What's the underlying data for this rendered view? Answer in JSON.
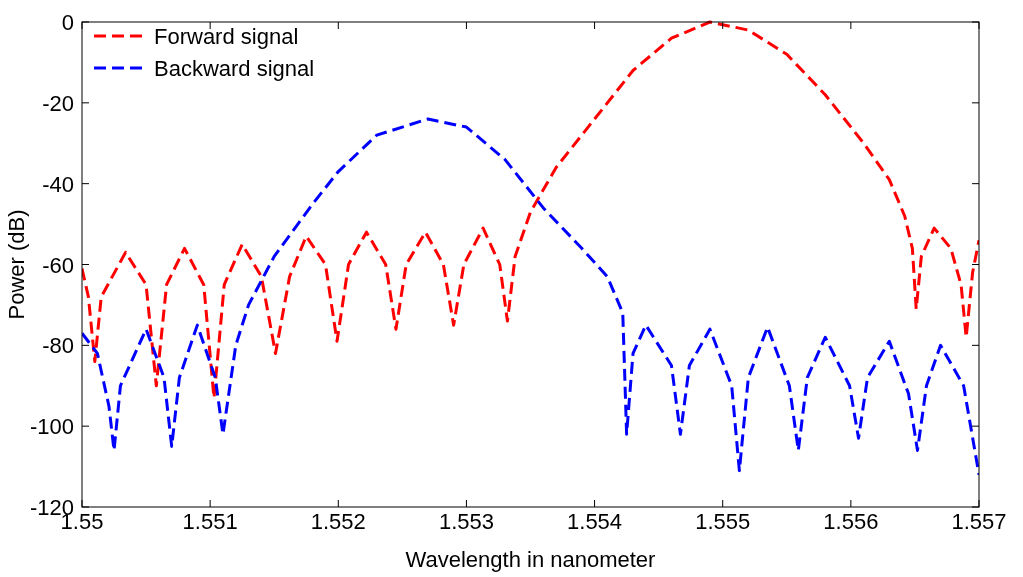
{
  "chart_data": {
    "type": "line",
    "xlabel": "Wavelength in nanometer",
    "ylabel": "Power (dB)",
    "xlim": [
      1.55,
      1.557
    ],
    "xticks": [
      1.55,
      1.551,
      1.552,
      1.553,
      1.554,
      1.555,
      1.556,
      1.557
    ],
    "ylim": [
      -120,
      0
    ],
    "yticks": [
      -120,
      -100,
      -80,
      -60,
      -40,
      -20,
      0
    ],
    "grid": false,
    "legend": "top left",
    "line_style": "dashed",
    "marker": "none",
    "series": [
      {
        "name": "Forward signal",
        "color": "#ff0000",
        "x": [
          1.55,
          1.55005,
          1.5501,
          1.55015,
          1.55034,
          1.5505,
          1.55058,
          1.55066,
          1.5508,
          1.55095,
          1.55103,
          1.55111,
          1.55125,
          1.5514,
          1.55151,
          1.55162,
          1.55175,
          1.5519,
          1.55199,
          1.55208,
          1.55222,
          1.55237,
          1.55245,
          1.55253,
          1.55268,
          1.55282,
          1.5529,
          1.55298,
          1.55313,
          1.55326,
          1.55332,
          1.55338,
          1.5535,
          1.5537,
          1.554,
          1.5543,
          1.5546,
          1.5549,
          1.5552,
          1.5555,
          1.5558,
          1.5561,
          1.5563,
          1.55642,
          1.55648,
          1.55651,
          1.55655,
          1.55665,
          1.55678,
          1.55686,
          1.5569,
          1.55695,
          1.557
        ],
        "values": [
          -61,
          -68,
          -84,
          -68,
          -57,
          -65,
          -90,
          -65,
          -56,
          -65,
          -93,
          -65,
          -55,
          -63,
          -82,
          -63,
          -53,
          -60,
          -79,
          -60,
          -52,
          -60,
          -76,
          -60,
          -52,
          -60,
          -75,
          -60,
          -51,
          -60,
          -74,
          -58,
          -47,
          -36,
          -24,
          -12,
          -4,
          0,
          -2,
          -8,
          -18,
          -30,
          -39,
          -48,
          -56,
          -71,
          -58,
          -51,
          -56,
          -65,
          -78,
          -62,
          -54
        ]
      },
      {
        "name": "Backward signal",
        "color": "#0000ff",
        "x": [
          1.55,
          1.55012,
          1.55021,
          1.55025,
          1.5503,
          1.5505,
          1.55064,
          1.5507,
          1.55076,
          1.5509,
          1.55104,
          1.5511,
          1.5512,
          1.5513,
          1.5515,
          1.5518,
          1.552,
          1.5523,
          1.5527,
          1.553,
          1.5533,
          1.5536,
          1.5539,
          1.5541,
          1.55422,
          1.55425,
          1.5543,
          1.5544,
          1.5546,
          1.55467,
          1.55474,
          1.5549,
          1.55507,
          1.55513,
          1.5552,
          1.55535,
          1.55552,
          1.55559,
          1.55566,
          1.5558,
          1.55599,
          1.55606,
          1.55613,
          1.5563,
          1.55645,
          1.55652,
          1.55659,
          1.5567,
          1.55688,
          1.557
        ],
        "values": [
          -77,
          -82,
          -95,
          -106,
          -90,
          -76,
          -88,
          -105,
          -88,
          -75,
          -88,
          -102,
          -80,
          -70,
          -58,
          -45,
          -37,
          -28,
          -24,
          -26,
          -34,
          -46,
          -56,
          -63,
          -72,
          -102,
          -82,
          -75,
          -85,
          -102,
          -85,
          -76,
          -90,
          -111,
          -88,
          -75.5,
          -90,
          -106,
          -88,
          -78,
          -90,
          -103,
          -88,
          -79,
          -92,
          -106,
          -90,
          -80,
          -90,
          -112
        ]
      }
    ]
  }
}
